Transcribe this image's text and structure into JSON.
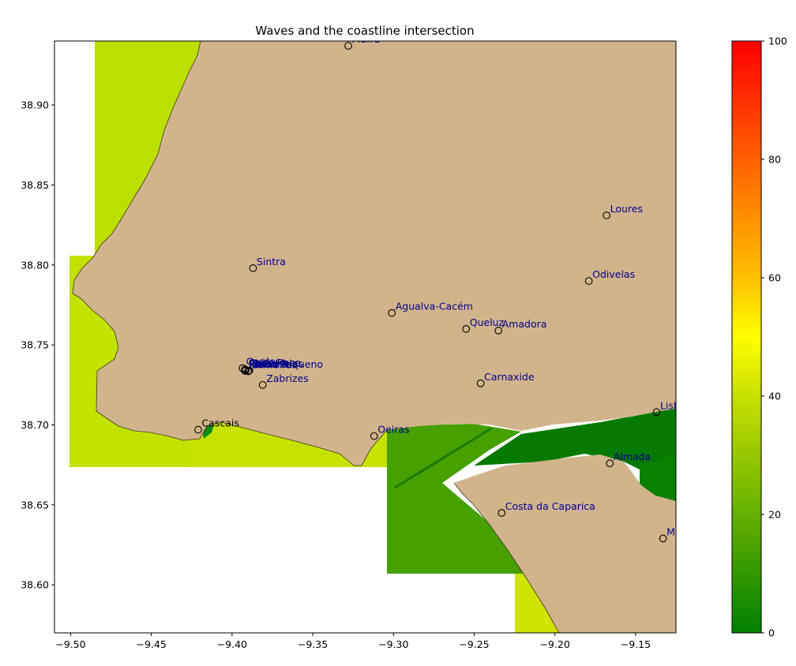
{
  "title": "Waves and the coastline intersection",
  "map": {
    "x_range": [
      -9.51,
      -9.125
    ],
    "y_range": [
      38.57,
      38.94
    ],
    "x_ticks": [
      -9.5,
      -9.45,
      -9.4,
      -9.35,
      -9.3,
      -9.25,
      -9.2,
      -9.15
    ],
    "x_tick_labels": [
      "−9.50",
      "−9.45",
      "−9.40",
      "−9.35",
      "−9.30",
      "−9.25",
      "−9.20",
      "−9.15"
    ],
    "y_ticks": [
      38.6,
      38.65,
      38.7,
      38.75,
      38.8,
      38.85,
      38.9
    ],
    "y_tick_labels": [
      "38.60",
      "38.65",
      "38.70",
      "38.75",
      "38.80",
      "38.85",
      "38.90"
    ],
    "land_color": "#d2b48c",
    "places": [
      {
        "name": "Mafra",
        "lon": -9.328,
        "lat": 38.937,
        "color": "#00008b"
      },
      {
        "name": "Loures",
        "lon": -9.168,
        "lat": 38.831,
        "color": "#00008b"
      },
      {
        "name": "Sintra",
        "lon": -9.387,
        "lat": 38.798,
        "color": "#00008b"
      },
      {
        "name": "Odivelas",
        "lon": -9.179,
        "lat": 38.79,
        "color": "#00008b"
      },
      {
        "name": "Agualva-Cacém",
        "lon": -9.301,
        "lat": 38.77,
        "color": "#00008b"
      },
      {
        "name": "Queluz",
        "lon": -9.255,
        "lat": 38.76,
        "color": "#00008b"
      },
      {
        "name": "Amadora",
        "lon": -9.235,
        "lat": 38.759,
        "color": "#00008b"
      },
      {
        "name": "Cordosa",
        "lon": -9.3935,
        "lat": 38.7355,
        "color": "#00008b"
      },
      {
        "name": "Fontanelas",
        "lon": -9.3915,
        "lat": 38.7342,
        "color": "#00008b"
      },
      {
        "name": "Cabo Raso",
        "lon": -9.392,
        "lat": 38.7348,
        "color": "#00008b"
      },
      {
        "name": "Lameiras",
        "lon": -9.39,
        "lat": 38.7335,
        "color": "#00008b"
      },
      {
        "name": "Azóia",
        "lon": -9.3893,
        "lat": 38.734,
        "color": "#00008b"
      },
      {
        "name": "Peninha",
        "lon": -9.392,
        "lat": 38.7338,
        "color": "#00008b"
      },
      {
        "name": "Cabo Pequeno",
        "lon": -9.3898,
        "lat": 38.7337,
        "color": "#00008b"
      },
      {
        "name": "Zabrizes",
        "lon": -9.381,
        "lat": 38.725,
        "color": "#00008b"
      },
      {
        "name": "Carnaxide",
        "lon": -9.246,
        "lat": 38.726,
        "color": "#00008b"
      },
      {
        "name": "Cascais",
        "lon": -9.421,
        "lat": 38.697,
        "color": "#000000"
      },
      {
        "name": "Oeiras",
        "lon": -9.312,
        "lat": 38.693,
        "color": "#00008b"
      },
      {
        "name": "Lisboa",
        "lon": -9.137,
        "lat": 38.708,
        "color": "#00008b"
      },
      {
        "name": "Almada",
        "lon": -9.166,
        "lat": 38.676,
        "color": "#00008b"
      },
      {
        "name": "Costa da Caparica",
        "lon": -9.233,
        "lat": 38.645,
        "color": "#00008b"
      },
      {
        "name": "Muxito",
        "lon": -9.133,
        "lat": 38.629,
        "color": "#00008b"
      }
    ]
  },
  "colorbar": {
    "min": 0,
    "max": 100,
    "ticks": [
      0,
      20,
      40,
      60,
      80,
      100
    ],
    "tick_labels": [
      "0",
      "20",
      "40",
      "60",
      "80",
      "100"
    ],
    "stops": [
      {
        "value": 0,
        "color": "#008000"
      },
      {
        "value": 40,
        "color": "#c8e000"
      },
      {
        "value": 50,
        "color": "#ffff00"
      },
      {
        "value": 60,
        "color": "#ffc000"
      },
      {
        "value": 100,
        "color": "#ff0000"
      }
    ]
  }
}
